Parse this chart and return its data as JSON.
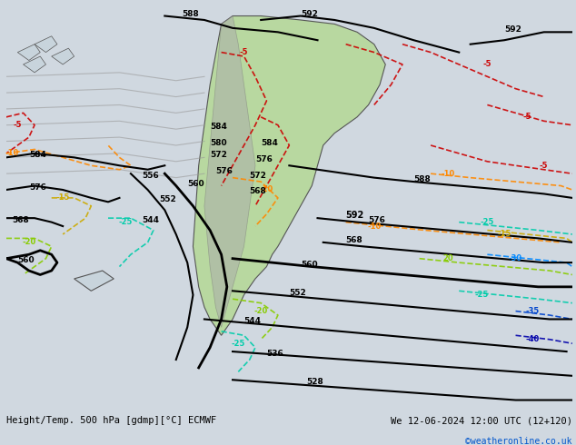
{
  "title_left": "Height/Temp. 500 hPa [gdmp][°C] ECMWF",
  "title_right": "We 12-06-2024 12:00 UTC (12+120)",
  "credit": "©weatheronline.co.uk",
  "bg_color": "#d0d8e0",
  "land_color": "#b8d8a0",
  "ocean_color": "#c8d4dc",
  "fig_width": 6.34,
  "fig_height": 4.9,
  "dpi": 100,
  "contour_color_black": "#000000",
  "contour_color_gray": "#888888",
  "temp_neg5_color": "#cc0000",
  "temp_neg10_color": "#ff8800",
  "temp_neg15_color": "#ccaa00",
  "temp_neg20_color": "#88cc00",
  "temp_neg25_color": "#00ccaa",
  "temp_neg30_color": "#0088ff",
  "temp_neg35_color": "#0044cc",
  "temp_neg40_color": "#0000aa"
}
